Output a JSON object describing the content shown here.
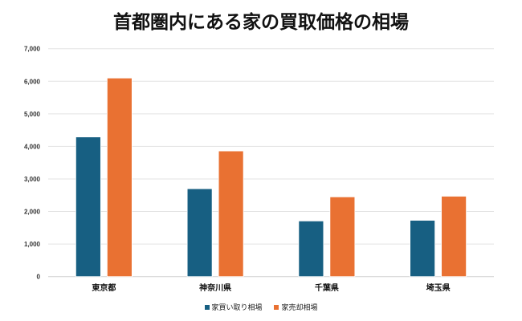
{
  "chart_data": {
    "type": "bar",
    "title": "首都圏内にある家の買取価格の相場",
    "xlabel": "",
    "ylabel": "",
    "categories": [
      "東京都",
      "神奈川県",
      "千葉県",
      "埼玉県"
    ],
    "series": [
      {
        "name": "家買い取り相場",
        "color": "#175f82",
        "values": [
          4290,
          2700,
          1710,
          1730
        ]
      },
      {
        "name": "家売却相場",
        "color": "#e97132",
        "values": [
          6100,
          3860,
          2450,
          2470
        ]
      }
    ],
    "ylim": [
      0,
      7000
    ],
    "yticks": [
      "0",
      "1,000",
      "2,000",
      "3,000",
      "4,000",
      "5,000",
      "6,000",
      "7,000"
    ],
    "grid": true,
    "legend": "bottom"
  }
}
